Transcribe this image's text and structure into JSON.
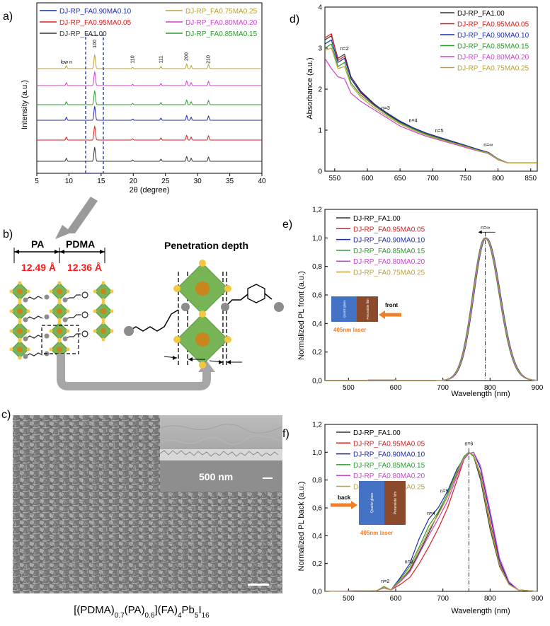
{
  "colors": {
    "s1": "#333333",
    "s2": "#d42020",
    "s3": "#1c2ca8",
    "s4": "#2e9a2e",
    "s5": "#cc44cc",
    "s6": "#b8a23a",
    "green": "#77b556",
    "gold": "#f5c842",
    "orange": "#c8861c",
    "gray": "#8c8c8c",
    "red": "#ff1a1a",
    "laser": "#f07f2a",
    "glass": "#4472c4",
    "perov": "#8b4a2b"
  },
  "panel_labels": {
    "a": "a)",
    "b": "b)",
    "c": "c)",
    "d": "d)",
    "e": "e)",
    "f": "f)"
  },
  "panel_a": {
    "legend": [
      {
        "label": "DJ-RP_FA0.90MA0.10",
        "color": "#1c2ca8"
      },
      {
        "label": "DJ-RP_FA0.75MA0.25",
        "color": "#b8a23a"
      },
      {
        "label": "DJ-RP_FA0.95MA0.05",
        "color": "#d42020"
      },
      {
        "label": "DJ-RP_FA0.80MA0.20",
        "color": "#cc44cc"
      },
      {
        "label": "DJ-RP_FA1.00",
        "color": "#333333"
      },
      {
        "label": "DJ-RP_FA0.85MA0.15",
        "color": "#2e9a2e"
      }
    ],
    "peak_labels": {
      "low_n": "low n",
      "p100": "100",
      "p110": "110",
      "p111": "111",
      "p200": "200",
      "p210": "210"
    }
  },
  "panel_b": {
    "pa": "PA",
    "pdma": "PDMA",
    "pa_val": "12.49 Å",
    "pdma_val": "12.36 Å",
    "penetration": "Penetration depth"
  },
  "panel_c": {
    "scale_label": "500 nm",
    "formula": {
      "a": "[(PDMA)",
      "b": "0.7",
      "c": "(PA)",
      "d": "0.6",
      "e": "](FA)",
      "f": "4",
      "g": "Pb",
      "h": "5",
      "i": "I",
      "j": "16"
    }
  },
  "inset_text": {
    "glass": "Quartz glass",
    "film": "Perovskite film",
    "laser": "405nm laser",
    "front": "front",
    "back": "back"
  },
  "chart_data": [
    {
      "panel": "a",
      "type": "line",
      "title": "",
      "xlabel": "2θ (degree)",
      "ylabel": "Intensity (a.u.)",
      "xlim": [
        5,
        40
      ],
      "xticks": [
        5,
        10,
        15,
        20,
        25,
        30,
        35,
        40
      ],
      "series_order_bottom_to_top": [
        "DJ-RP_FA1.00",
        "DJ-RP_FA0.95MA0.05",
        "DJ-RP_FA0.90MA0.10",
        "DJ-RP_FA0.85MA0.15",
        "DJ-RP_FA0.80MA0.20",
        "DJ-RP_FA0.75MA0.25"
      ],
      "peaks_2theta": [
        9.6,
        14.0,
        19.9,
        24.3,
        28.3,
        29.0,
        31.7
      ],
      "peak_heights": [
        0.35,
        1.6,
        0.15,
        0.25,
        0.55,
        0.35,
        0.5
      ],
      "peak_labels": [
        {
          "x": 9.6,
          "label": "low n"
        },
        {
          "x": 14.0,
          "label": "100"
        },
        {
          "x": 19.9,
          "label": "110"
        },
        {
          "x": 24.3,
          "label": "111"
        },
        {
          "x": 28.3,
          "label": "200"
        },
        {
          "x": 31.7,
          "label": "210"
        }
      ],
      "highlight_box": [
        12.9,
        15.2
      ]
    },
    {
      "panel": "d",
      "type": "line",
      "xlabel": "",
      "ylabel": "Absorbance (a.u.)",
      "xlim": [
        535,
        860
      ],
      "ylim": [
        0,
        4
      ],
      "xticks": [
        550,
        600,
        650,
        700,
        750,
        800,
        850
      ],
      "yticks": [
        0,
        1,
        2,
        3,
        4
      ],
      "series": [
        {
          "name": "DJ-RP_FA1.00",
          "color": "#333333",
          "x": [
            535,
            545,
            555,
            565,
            575,
            590,
            610,
            630,
            650,
            670,
            690,
            710,
            730,
            750,
            770,
            785,
            800,
            815,
            830,
            860
          ],
          "y": [
            3.2,
            3.3,
            2.75,
            2.85,
            2.3,
            1.95,
            1.65,
            1.4,
            1.2,
            1.05,
            0.92,
            0.82,
            0.72,
            0.62,
            0.52,
            0.45,
            0.3,
            0.2,
            0.2,
            0.2
          ]
        },
        {
          "name": "DJ-RP_FA0.95MA0.05",
          "color": "#d42020",
          "x": [
            535,
            545,
            555,
            565,
            575,
            590,
            610,
            630,
            650,
            670,
            690,
            710,
            730,
            750,
            770,
            785,
            800,
            815,
            830,
            860
          ],
          "y": [
            3.25,
            3.35,
            2.7,
            2.8,
            2.25,
            1.9,
            1.62,
            1.38,
            1.18,
            1.03,
            0.9,
            0.8,
            0.7,
            0.6,
            0.5,
            0.44,
            0.28,
            0.2,
            0.2,
            0.2
          ]
        },
        {
          "name": "DJ-RP_FA0.90MA0.10",
          "color": "#1c2ca8",
          "x": [
            535,
            545,
            555,
            565,
            575,
            590,
            610,
            630,
            650,
            670,
            690,
            710,
            730,
            750,
            770,
            785,
            800,
            815,
            830,
            860
          ],
          "y": [
            3.1,
            3.2,
            2.65,
            2.75,
            2.25,
            1.92,
            1.64,
            1.42,
            1.22,
            1.06,
            0.93,
            0.83,
            0.73,
            0.63,
            0.53,
            0.46,
            0.3,
            0.2,
            0.2,
            0.2
          ]
        },
        {
          "name": "DJ-RP_FA0.85MA0.15",
          "color": "#2e9a2e",
          "x": [
            535,
            545,
            555,
            565,
            575,
            590,
            610,
            630,
            650,
            670,
            690,
            710,
            730,
            750,
            770,
            785,
            800,
            815,
            830,
            860
          ],
          "y": [
            3.0,
            3.1,
            2.55,
            2.65,
            2.15,
            1.85,
            1.6,
            1.38,
            1.18,
            1.03,
            0.9,
            0.8,
            0.7,
            0.61,
            0.51,
            0.45,
            0.3,
            0.2,
            0.2,
            0.2
          ]
        },
        {
          "name": "DJ-RP_FA0.80MA0.20",
          "color": "#cc44cc",
          "x": [
            535,
            545,
            555,
            565,
            575,
            590,
            610,
            630,
            650,
            670,
            690,
            710,
            730,
            750,
            770,
            785,
            800,
            815,
            830,
            860
          ],
          "y": [
            2.75,
            2.5,
            2.3,
            2.25,
            1.9,
            1.7,
            1.5,
            1.3,
            1.1,
            0.97,
            0.85,
            0.76,
            0.67,
            0.58,
            0.49,
            0.43,
            0.28,
            0.2,
            0.2,
            0.2
          ]
        },
        {
          "name": "DJ-RP_FA0.75MA0.25",
          "color": "#b8a23a",
          "x": [
            535,
            545,
            555,
            565,
            575,
            590,
            610,
            630,
            650,
            670,
            690,
            710,
            730,
            750,
            770,
            785,
            800,
            815,
            830,
            860
          ],
          "y": [
            2.95,
            3.0,
            2.5,
            2.55,
            2.1,
            1.8,
            1.55,
            1.34,
            1.15,
            1.0,
            0.88,
            0.78,
            0.69,
            0.6,
            0.5,
            0.44,
            0.29,
            0.2,
            0.2,
            0.2
          ]
        }
      ],
      "annotations": [
        {
          "label": "n=2",
          "x": 565,
          "y": 2.95
        },
        {
          "label": "n=3",
          "x": 628,
          "y": 1.5
        },
        {
          "label": "n=4",
          "x": 670,
          "y": 1.2
        },
        {
          "label": "n=5",
          "x": 710,
          "y": 0.95
        },
        {
          "label": "n=∞",
          "x": 785,
          "y": 0.6
        }
      ]
    },
    {
      "panel": "e",
      "type": "line",
      "xlabel": "Wavelength (nm)",
      "ylabel": "Normalized PL front (a.u.)",
      "xlim": [
        450,
        900
      ],
      "ylim": [
        0,
        1.2
      ],
      "xticks": [
        500,
        600,
        700,
        800,
        900
      ],
      "yticks": [
        0,
        0.2,
        0.4,
        0.6,
        0.8,
        1.0,
        1.2
      ],
      "ytick_labels": [
        "0,0",
        "0,2",
        "0,4",
        "0,6",
        "0,8",
        "1,0",
        "1,2"
      ],
      "peak_nm": [
        790,
        791,
        792,
        789,
        790,
        791
      ],
      "series": [
        {
          "name": "DJ-RP_FA1.00",
          "color": "#333333"
        },
        {
          "name": "DJ-RP_FA0.95MA0.05",
          "color": "#d42020"
        },
        {
          "name": "DJ-RP_FA0.90MA0.10",
          "color": "#1c2ca8"
        },
        {
          "name": "DJ-RP_FA0.85MA0.15",
          "color": "#2e9a2e"
        },
        {
          "name": "DJ-RP_FA0.80MA0.20",
          "color": "#cc44cc"
        },
        {
          "name": "DJ-RP_FA0.75MA0.25",
          "color": "#b8a23a"
        }
      ],
      "annotations": [
        {
          "label": "n=∞",
          "x": 790,
          "y": 1.06
        }
      ]
    },
    {
      "panel": "f",
      "type": "line",
      "xlabel": "Wavelength (nm)",
      "ylabel": "Normalized PL back (a.u.)",
      "xlim": [
        450,
        900
      ],
      "ylim": [
        0,
        1.2
      ],
      "xticks": [
        500,
        600,
        700,
        800,
        900
      ],
      "yticks": [
        0,
        0.2,
        0.4,
        0.6,
        0.8,
        1.0,
        1.2
      ],
      "ytick_labels": [
        "0,0",
        "0,2",
        "0,4",
        "0,6",
        "0,8",
        "1,0",
        "1,2"
      ],
      "series": [
        {
          "name": "DJ-RP_FA1.00",
          "color": "#333333",
          "x": [
            450,
            560,
            575,
            590,
            610,
            630,
            650,
            670,
            690,
            710,
            730,
            745,
            755,
            765,
            780,
            800,
            820,
            840,
            860,
            900
          ],
          "y": [
            0,
            0.005,
            0.03,
            0.01,
            0.08,
            0.15,
            0.28,
            0.42,
            0.56,
            0.68,
            0.85,
            0.97,
            1.0,
            0.97,
            0.8,
            0.45,
            0.18,
            0.05,
            0.01,
            0
          ]
        },
        {
          "name": "DJ-RP_FA0.95MA0.05",
          "color": "#d42020",
          "x": [
            450,
            560,
            575,
            590,
            610,
            630,
            650,
            670,
            690,
            710,
            730,
            745,
            755,
            765,
            780,
            800,
            820,
            840,
            860,
            900
          ],
          "y": [
            0,
            0.005,
            0.025,
            0.01,
            0.05,
            0.1,
            0.2,
            0.32,
            0.45,
            0.6,
            0.8,
            0.95,
            1.0,
            0.98,
            0.84,
            0.5,
            0.2,
            0.06,
            0.01,
            0
          ]
        },
        {
          "name": "DJ-RP_FA0.90MA0.10",
          "color": "#1c2ca8",
          "x": [
            450,
            560,
            575,
            590,
            610,
            630,
            650,
            670,
            690,
            710,
            730,
            745,
            755,
            765,
            780,
            800,
            820,
            840,
            860,
            900
          ],
          "y": [
            0,
            0.005,
            0.03,
            0.01,
            0.1,
            0.2,
            0.38,
            0.52,
            0.6,
            0.72,
            0.88,
            0.96,
            0.99,
            1.0,
            0.88,
            0.55,
            0.22,
            0.06,
            0.01,
            0
          ]
        },
        {
          "name": "DJ-RP_FA0.85MA0.15",
          "color": "#2e9a2e",
          "x": [
            450,
            560,
            575,
            590,
            610,
            630,
            650,
            670,
            690,
            710,
            730,
            745,
            755,
            765,
            780,
            800,
            820,
            840,
            860,
            900
          ],
          "y": [
            0,
            0.005,
            0.035,
            0.01,
            0.09,
            0.18,
            0.32,
            0.47,
            0.57,
            0.7,
            0.87,
            0.97,
            1.0,
            0.97,
            0.82,
            0.47,
            0.19,
            0.05,
            0.01,
            0
          ]
        },
        {
          "name": "DJ-RP_FA0.80MA0.20",
          "color": "#cc44cc",
          "x": [
            450,
            560,
            575,
            590,
            610,
            630,
            650,
            670,
            690,
            710,
            730,
            745,
            755,
            765,
            780,
            800,
            820,
            840,
            860,
            900
          ],
          "y": [
            0,
            0.005,
            0.03,
            0.01,
            0.07,
            0.14,
            0.27,
            0.4,
            0.52,
            0.65,
            0.83,
            0.95,
            0.99,
            1.0,
            0.9,
            0.58,
            0.24,
            0.07,
            0.01,
            0
          ]
        },
        {
          "name": "DJ-RP_FA0.75MA0.25",
          "color": "#b8a23a",
          "x": [
            450,
            560,
            575,
            590,
            610,
            630,
            650,
            670,
            690,
            710,
            730,
            745,
            755,
            765,
            780,
            800,
            820,
            840,
            860,
            900
          ],
          "y": [
            0,
            0.005,
            0.03,
            0.01,
            0.08,
            0.16,
            0.3,
            0.44,
            0.55,
            0.68,
            0.86,
            0.96,
            1.0,
            0.98,
            0.83,
            0.48,
            0.19,
            0.05,
            0.01,
            0
          ]
        }
      ],
      "annotations": [
        {
          "label": "n=2",
          "x": 578,
          "y": 0.06
        },
        {
          "label": "n=3",
          "x": 628,
          "y": 0.2
        },
        {
          "label": "n=4",
          "x": 675,
          "y": 0.55
        },
        {
          "label": "n=5",
          "x": 703,
          "y": 0.71
        },
        {
          "label": "n=6",
          "x": 755,
          "y": 1.05
        }
      ]
    }
  ]
}
